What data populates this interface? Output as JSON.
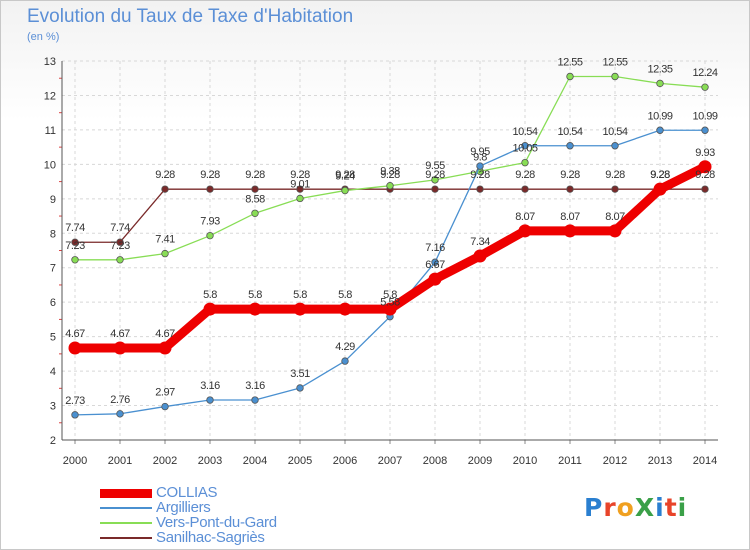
{
  "title": "Evolution du Taux de Taxe d'Habitation",
  "unit": "(en %)",
  "logo": {
    "text": "ProXiti",
    "letters": [
      "P",
      "r",
      "o",
      "X",
      "i",
      "t",
      "i"
    ],
    "colors": [
      "#2a7fd0",
      "#e8442a",
      "#f0a020",
      "#3aa048",
      "#2a7fd0",
      "#e8442a",
      "#3aa048"
    ]
  },
  "chart_data": {
    "type": "line",
    "x": [
      "2000",
      "2001",
      "2002",
      "2003",
      "2004",
      "2005",
      "2006",
      "2007",
      "2008",
      "2009",
      "2010",
      "2011",
      "2012",
      "2013",
      "2014"
    ],
    "ylim": [
      2,
      13
    ],
    "yticks": [
      "2",
      "3",
      "4",
      "5",
      "6",
      "7",
      "8",
      "9",
      "10",
      "11",
      "12",
      "13"
    ],
    "grid": true,
    "legend_position": "bottom-left",
    "series": [
      {
        "name": "Sanilhac-Sagriès",
        "color": "#7a2a2a",
        "values": [
          7.74,
          7.74,
          9.28,
          9.28,
          9.28,
          9.28,
          9.28,
          9.28,
          9.28,
          9.28,
          9.28,
          9.28,
          9.28,
          9.28,
          9.28
        ],
        "labels": [
          "7.74",
          "7.74",
          "9.28",
          "9.28",
          "9.28",
          "9.28",
          "9.28",
          "9.28",
          "9.28",
          "9.28",
          "9.28",
          "9.28",
          "9.28",
          "9.28",
          "9.28"
        ]
      },
      {
        "name": "Vers-Pont-du-Gard",
        "color": "#88dd55",
        "values": [
          7.23,
          7.23,
          7.41,
          7.93,
          8.58,
          9.01,
          9.24,
          9.38,
          9.55,
          9.8,
          10.05,
          12.55,
          12.55,
          12.35,
          12.24
        ],
        "labels": [
          "7.23",
          "7.23",
          "7.41",
          "7.93",
          "8.58",
          "9.01",
          "9.24",
          "9.38",
          "9.55",
          "9.8",
          "10.05",
          "12.55",
          "12.55",
          "12.35",
          "12.24"
        ]
      },
      {
        "name": "Argilliers",
        "color": "#4a90d0",
        "values": [
          2.73,
          2.76,
          2.97,
          3.16,
          3.16,
          3.51,
          4.29,
          5.58,
          7.16,
          9.95,
          10.54,
          10.54,
          10.54,
          10.99,
          10.99
        ],
        "labels": [
          "2.73",
          "2.76",
          "2.97",
          "3.16",
          "3.16",
          "3.51",
          "4.29",
          "5.58",
          "7.16",
          "9.95",
          "10.54",
          "10.54",
          "10.54",
          "10.99",
          "10.99"
        ]
      },
      {
        "name": "COLLIAS",
        "color": "#ee0000",
        "values": [
          4.67,
          4.67,
          4.67,
          5.8,
          5.8,
          5.8,
          5.8,
          5.8,
          6.67,
          7.34,
          8.07,
          8.07,
          8.07,
          9.28,
          9.93
        ],
        "labels": [
          "4.67",
          "4.67",
          "4.67",
          "5.8",
          "5.8",
          "5.8",
          "5.8",
          "5.8",
          "6.67",
          "7.34",
          "8.07",
          "8.07",
          "8.07",
          "9.28",
          "9.93"
        ]
      }
    ],
    "legend": [
      "COLLIAS",
      "Argilliers",
      "Vers-Pont-du-Gard",
      "Sanilhac-Sagriès"
    ]
  }
}
